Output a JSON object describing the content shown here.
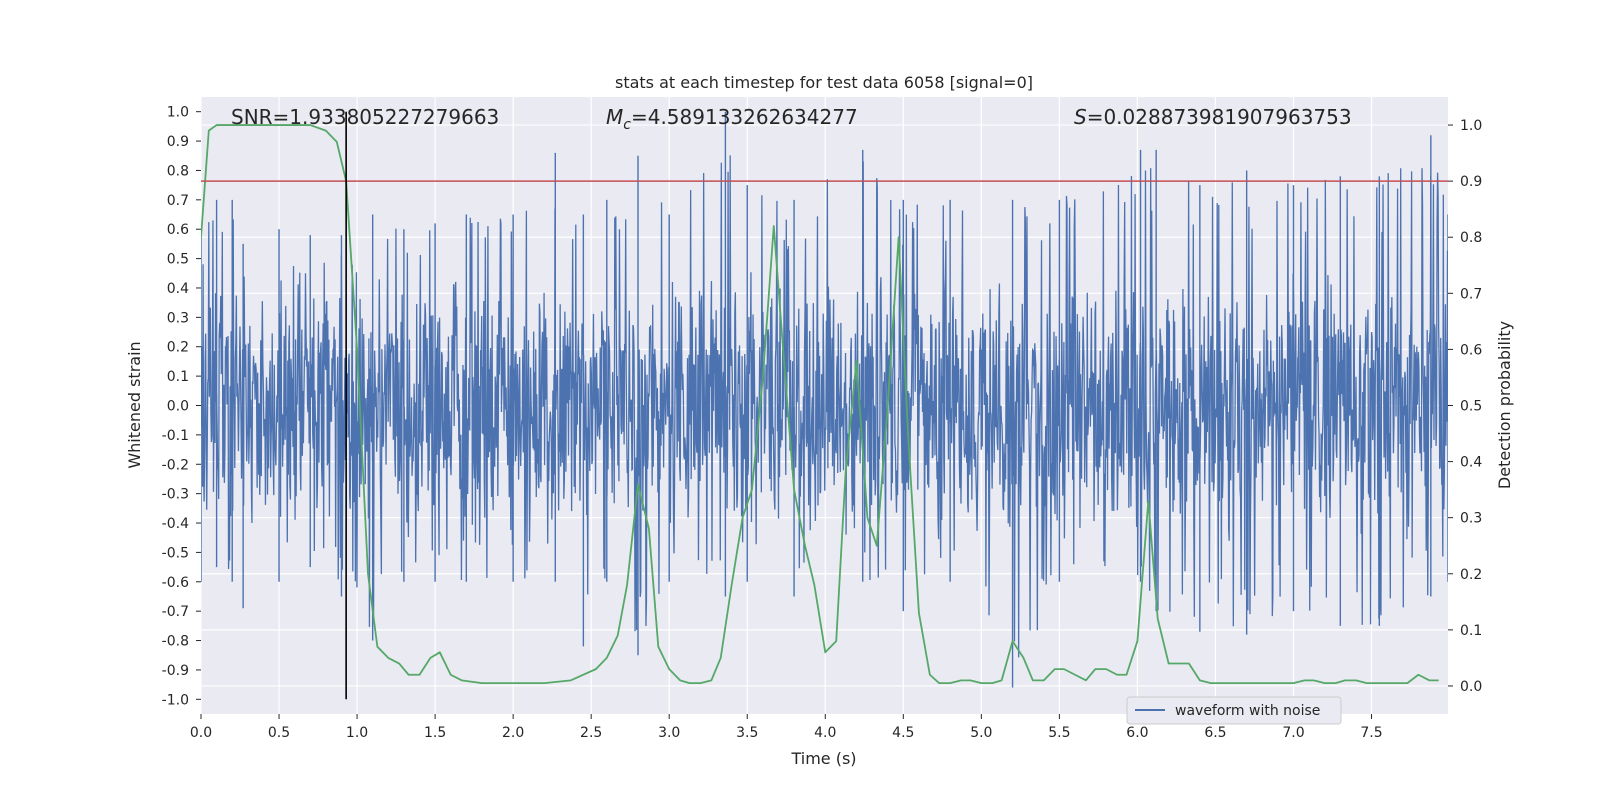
{
  "chart_data": {
    "type": "line",
    "title": "stats at each timestep for test data 6058 [signal=0]",
    "xlabel": "Time (s)",
    "ylabel": "Whitened strain",
    "y2label": "Detection probability",
    "xlim": [
      0.0,
      7.99
    ],
    "ylim": [
      -1.05,
      1.05
    ],
    "y2lim": [
      -0.05,
      1.05
    ],
    "xticks": [
      0.0,
      0.5,
      1.0,
      1.5,
      2.0,
      2.5,
      3.0,
      3.5,
      4.0,
      4.5,
      5.0,
      5.5,
      6.0,
      6.5,
      7.0,
      7.5
    ],
    "yticks": [
      -1.0,
      -0.9,
      -0.8,
      -0.7,
      -0.6,
      -0.5,
      -0.4,
      -0.3,
      -0.2,
      -0.1,
      0.0,
      0.1,
      0.2,
      0.3,
      0.4,
      0.5,
      0.6,
      0.7,
      0.8,
      0.9,
      1.0
    ],
    "y2ticks": [
      0.0,
      0.1,
      0.2,
      0.3,
      0.4,
      0.5,
      0.6,
      0.7,
      0.8,
      0.9,
      1.0
    ],
    "annotations": {
      "snr": "SNR=1.933805227279663",
      "mc_symbol": "M",
      "mc_sub": "c",
      "mc_value": "=4.589133262634277",
      "s_symbol": "S",
      "s_value": "=0.028873981907963753"
    },
    "threshold": {
      "value": 0.8,
      "color": "#c44e52"
    },
    "marker_line": {
      "x": 0.93,
      "color": "#000000"
    },
    "series": [
      {
        "name": "waveform with noise",
        "color": "#4c72b0",
        "axis": "left",
        "description": "whitened noisy strain, sampled densely",
        "envelope_peaks": [
          [
            0.0,
            0.6,
            -0.6
          ],
          [
            0.1,
            0.7,
            -0.55
          ],
          [
            0.2,
            0.7,
            -0.6
          ],
          [
            0.27,
            0.55,
            -0.69
          ],
          [
            0.5,
            0.6,
            -0.6
          ],
          [
            0.7,
            0.58,
            -0.55
          ],
          [
            0.9,
            0.58,
            -0.65
          ],
          [
            1.1,
            0.65,
            -0.8
          ],
          [
            1.3,
            0.6,
            -0.6
          ],
          [
            1.5,
            0.62,
            -0.6
          ],
          [
            1.7,
            0.65,
            -0.6
          ],
          [
            2.0,
            0.65,
            -0.6
          ],
          [
            2.27,
            0.86,
            -0.6
          ],
          [
            2.45,
            0.65,
            -0.82
          ],
          [
            2.6,
            0.7,
            -0.6
          ],
          [
            2.8,
            0.85,
            -0.85
          ],
          [
            3.0,
            0.65,
            -0.6
          ],
          [
            3.36,
            1.0,
            -0.65
          ],
          [
            3.5,
            0.75,
            -0.6
          ],
          [
            3.8,
            0.7,
            -0.65
          ],
          [
            4.24,
            0.87,
            -0.6
          ],
          [
            4.5,
            0.7,
            -0.7
          ],
          [
            4.8,
            0.7,
            -0.6
          ],
          [
            5.2,
            0.7,
            -0.96
          ],
          [
            5.5,
            0.7,
            -0.6
          ],
          [
            6.02,
            0.87,
            -0.6
          ],
          [
            6.12,
            0.87,
            -0.7
          ],
          [
            6.4,
            0.75,
            -0.77
          ],
          [
            6.7,
            0.8,
            -0.78
          ],
          [
            7.0,
            0.75,
            -0.7
          ],
          [
            7.3,
            0.78,
            -0.75
          ],
          [
            7.55,
            0.78,
            -0.75
          ],
          [
            7.88,
            0.92,
            -0.65
          ],
          [
            7.99,
            0.65,
            -0.6
          ]
        ]
      },
      {
        "name": "detection probability",
        "color": "#55a868",
        "axis": "right",
        "x": [
          0.0,
          0.05,
          0.1,
          0.2,
          0.3,
          0.4,
          0.5,
          0.6,
          0.7,
          0.8,
          0.87,
          0.93,
          1.0,
          1.07,
          1.13,
          1.2,
          1.27,
          1.33,
          1.4,
          1.47,
          1.53,
          1.6,
          1.67,
          1.8,
          2.0,
          2.2,
          2.37,
          2.45,
          2.53,
          2.6,
          2.67,
          2.73,
          2.8,
          2.87,
          2.93,
          3.0,
          3.07,
          3.13,
          3.2,
          3.27,
          3.33,
          3.4,
          3.47,
          3.53,
          3.6,
          3.67,
          3.73,
          3.8,
          3.87,
          3.93,
          4.0,
          4.07,
          4.13,
          4.2,
          4.27,
          4.33,
          4.4,
          4.47,
          4.53,
          4.6,
          4.67,
          4.73,
          4.8,
          4.87,
          4.93,
          5.0,
          5.07,
          5.13,
          5.2,
          5.27,
          5.33,
          5.4,
          5.47,
          5.53,
          5.6,
          5.67,
          5.73,
          5.8,
          5.87,
          5.93,
          6.0,
          6.07,
          6.13,
          6.2,
          6.27,
          6.33,
          6.4,
          6.47,
          6.6,
          6.8,
          7.0,
          7.07,
          7.13,
          7.2,
          7.27,
          7.33,
          7.4,
          7.47,
          7.53,
          7.6,
          7.67,
          7.73,
          7.8,
          7.87,
          7.93
        ],
        "values": [
          0.8,
          0.99,
          1.0,
          1.0,
          1.0,
          1.0,
          1.0,
          1.0,
          1.0,
          0.99,
          0.97,
          0.9,
          0.6,
          0.2,
          0.07,
          0.05,
          0.04,
          0.02,
          0.02,
          0.05,
          0.06,
          0.02,
          0.01,
          0.005,
          0.005,
          0.005,
          0.01,
          0.02,
          0.03,
          0.05,
          0.09,
          0.18,
          0.36,
          0.28,
          0.07,
          0.03,
          0.01,
          0.005,
          0.005,
          0.01,
          0.05,
          0.18,
          0.3,
          0.35,
          0.55,
          0.82,
          0.6,
          0.35,
          0.25,
          0.18,
          0.06,
          0.08,
          0.38,
          0.58,
          0.3,
          0.25,
          0.5,
          0.8,
          0.45,
          0.13,
          0.02,
          0.005,
          0.005,
          0.01,
          0.01,
          0.005,
          0.005,
          0.01,
          0.08,
          0.05,
          0.01,
          0.01,
          0.03,
          0.03,
          0.02,
          0.01,
          0.03,
          0.03,
          0.02,
          0.02,
          0.08,
          0.33,
          0.12,
          0.04,
          0.04,
          0.04,
          0.01,
          0.005,
          0.005,
          0.005,
          0.005,
          0.01,
          0.01,
          0.005,
          0.005,
          0.01,
          0.01,
          0.005,
          0.005,
          0.005,
          0.005,
          0.005,
          0.02,
          0.01,
          0.01
        ]
      }
    ],
    "legend": {
      "position": "lower right",
      "entries": [
        "waveform with noise"
      ]
    }
  }
}
